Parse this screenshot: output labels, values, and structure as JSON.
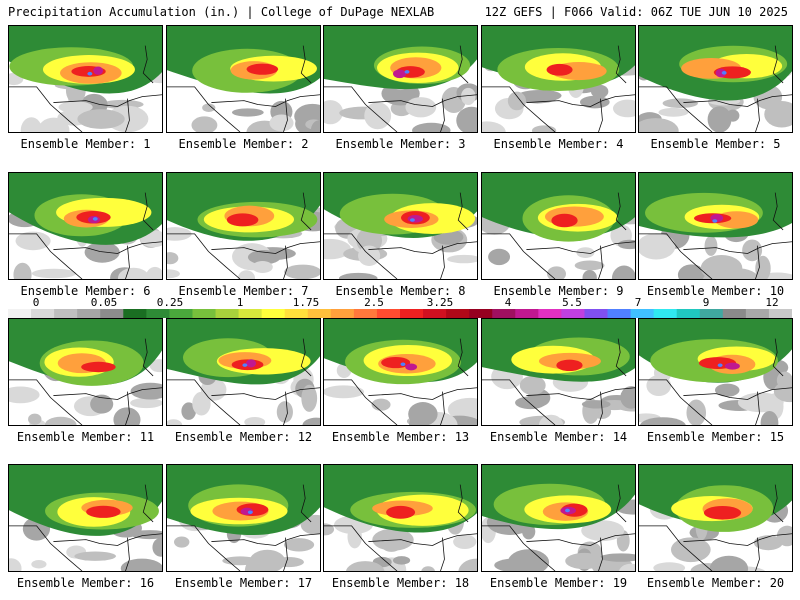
{
  "header": {
    "title": "Precipitation Accumulation (in.) | College of DuPage NEXLAB",
    "info": "12Z GEFS | F066 Valid: 06Z TUE JUN 10 2025"
  },
  "colorbar": {
    "tick_labels": [
      "0",
      "0.05",
      "0.25",
      "1",
      "1.75",
      "2.5",
      "3.25",
      "4",
      "5.5",
      "7",
      "9",
      "12"
    ],
    "colors": [
      "#f2f2f2",
      "#d9d9d9",
      "#bfbfbf",
      "#a6a6a6",
      "#8c8c8c",
      "#1a6e22",
      "#2e8b36",
      "#4aa83c",
      "#78c03c",
      "#a8d23c",
      "#d8e83c",
      "#ffff3c",
      "#ffe03c",
      "#ffc03c",
      "#ffa03c",
      "#ff783c",
      "#ff4c30",
      "#ee2020",
      "#d01020",
      "#b00818",
      "#960020",
      "#a01060",
      "#c01890",
      "#e030c0",
      "#c040e0",
      "#8050f0",
      "#5080ff",
      "#40c0ff",
      "#30e8f0",
      "#20c8c0",
      "#40a8a0",
      "#8a8a8a",
      "#a8a8a8",
      "#c8c8c8"
    ]
  },
  "caption_prefix": "Ensemble Member: ",
  "members": [
    {
      "num": "1"
    },
    {
      "num": "2"
    },
    {
      "num": "3"
    },
    {
      "num": "4"
    },
    {
      "num": "5"
    },
    {
      "num": "6"
    },
    {
      "num": "7"
    },
    {
      "num": "8"
    },
    {
      "num": "9"
    },
    {
      "num": "10"
    },
    {
      "num": "11"
    },
    {
      "num": "12"
    },
    {
      "num": "13"
    },
    {
      "num": "14"
    },
    {
      "num": "15"
    },
    {
      "num": "16"
    },
    {
      "num": "17"
    },
    {
      "num": "18"
    },
    {
      "num": "19"
    },
    {
      "num": "20"
    }
  ]
}
